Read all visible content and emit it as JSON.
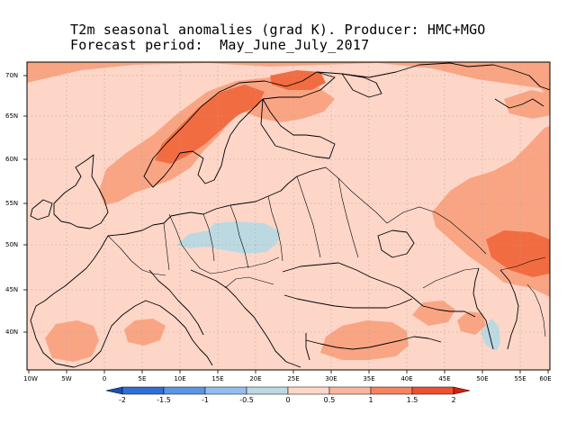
{
  "title_line1": "T2m seasonal anomalies (grad K). Producer: HMC+MGO",
  "title_line2": "Forecast period:  May_June_July_2017",
  "lat_labels": [
    "70N",
    "65N",
    "60N",
    "55N",
    "50N",
    "45N",
    "40N"
  ],
  "lon_labels": [
    "10W",
    "5W",
    "0",
    "5E",
    "10E",
    "15E",
    "20E",
    "25E",
    "30E",
    "35E",
    "40E",
    "45E",
    "50E",
    "55E",
    "60E"
  ],
  "colorbar": {
    "labels": [
      "-2",
      "-1.5",
      "-1",
      "-0.5",
      "0",
      "0.5",
      "1",
      "1.5",
      "2"
    ],
    "colors": [
      "#1a4fb8",
      "#2f6fd8",
      "#5b95e6",
      "#94bdf0",
      "#bcd9e2",
      "#fdd6c8",
      "#fbb59c",
      "#f6845e",
      "#ee5030",
      "#d6200e"
    ]
  },
  "map_colors": {
    "base": "#fdd6c8",
    "warm": "#f9a584",
    "hot": "#f26c42",
    "cool": "#bcd9e2"
  }
}
